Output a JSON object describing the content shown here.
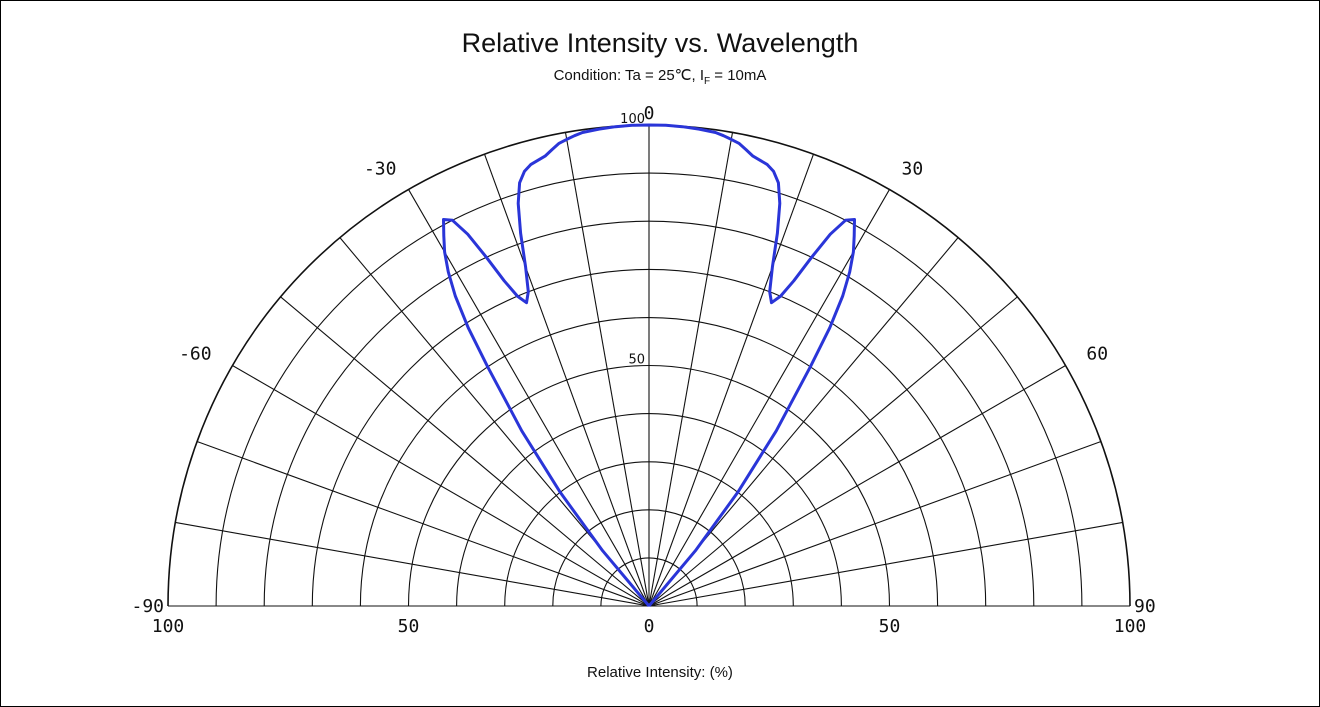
{
  "chart_data": {
    "type": "polar",
    "title": "Relative Intensity vs. Wavelength",
    "subtitle": {
      "prefix": "Condition: Ta = 25℃, I",
      "sub": "F",
      "suffix": " = 10mA"
    },
    "xlabel": "Relative Intensity: (%)",
    "angle_range": [
      -90,
      90
    ],
    "radial_range": [
      0,
      100
    ],
    "angle_tick_labels": [
      "-90",
      "-60",
      "-30",
      "0",
      "30",
      "60",
      "90"
    ],
    "radial_tick_labels": [
      "100",
      "50",
      "0",
      "50",
      "100"
    ],
    "inner_radial_labels": [
      "100",
      "50"
    ],
    "grid": true,
    "series": [
      {
        "color": "#2a35d8",
        "angles": [
          -42,
          -40,
          -38,
          -36,
          -34,
          -33,
          -32,
          -31,
          -30,
          -29,
          -28,
          -27,
          -26,
          -25,
          -24,
          -23,
          -22,
          -21,
          -20,
          -19,
          -18,
          -17,
          -16,
          -15,
          -14,
          -13,
          -12,
          -11,
          -10,
          -9,
          -8,
          -6,
          -4,
          -2,
          0,
          2,
          4,
          6,
          8,
          9,
          10,
          11,
          12,
          13,
          14,
          15,
          16,
          17,
          18,
          19,
          20,
          21,
          22,
          23,
          24,
          25,
          26,
          27,
          28,
          29,
          30,
          31,
          32,
          33,
          34,
          36,
          38,
          40,
          42
        ],
        "values": [
          0,
          15,
          30,
          45,
          60,
          69,
          76,
          81,
          85,
          88,
          91,
          90,
          86,
          80,
          74,
          70,
          68,
          70,
          75,
          82,
          88,
          92,
          94,
          95,
          95.5,
          96,
          97,
          98,
          98.5,
          99,
          99.4,
          99.7,
          99.9,
          100,
          100,
          100,
          99.9,
          99.7,
          99.4,
          99,
          98.5,
          98,
          97,
          96,
          95.5,
          95,
          94,
          92,
          88,
          82,
          75,
          70,
          68,
          70,
          74,
          80,
          86,
          90,
          91,
          88,
          85,
          81,
          76,
          69,
          60,
          45,
          30,
          15,
          0
        ]
      }
    ]
  }
}
